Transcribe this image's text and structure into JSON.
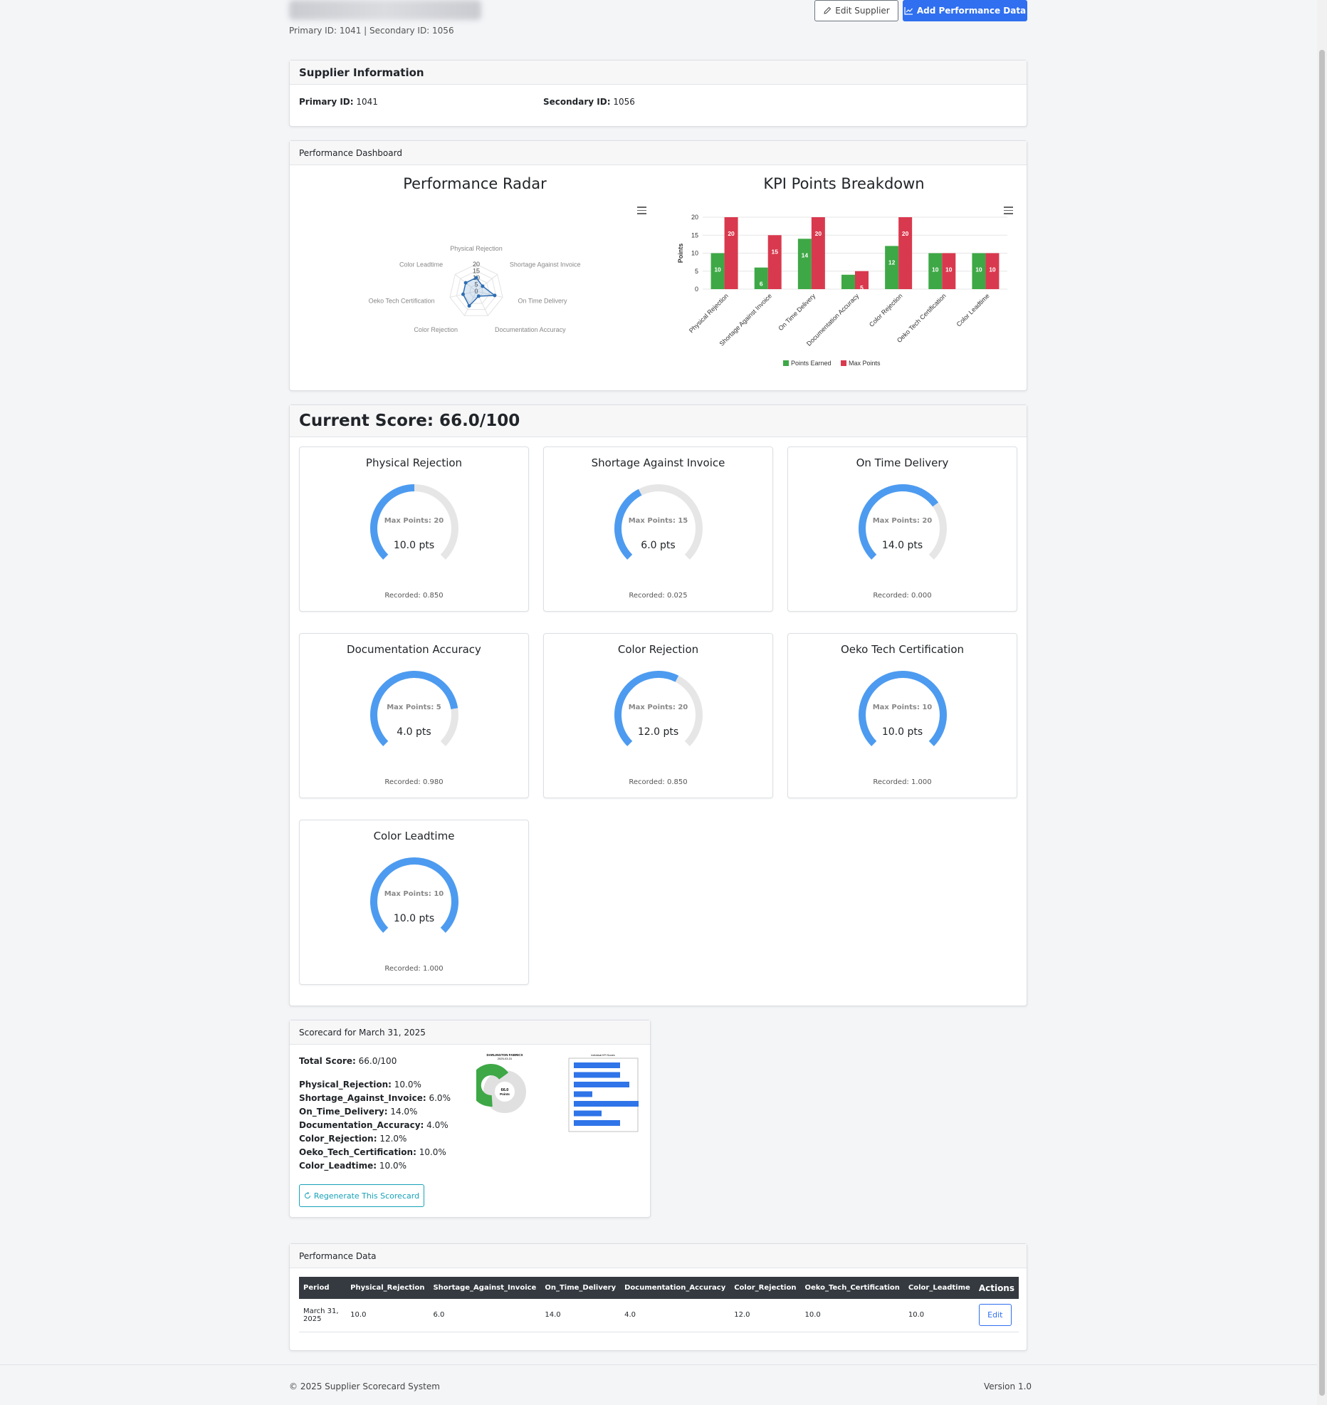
{
  "header": {
    "supplier_name": "DARLINGTON FABRICS",
    "ids_line": "Primary ID: 1041 | Secondary ID: 1056",
    "edit_label": "Edit Supplier",
    "add_label": "Add Performance Data",
    "edit_icon": "pencil-icon",
    "add_icon": "line-chart-icon"
  },
  "supplier_info": {
    "title": "Supplier Information",
    "primary_label": "Primary ID:",
    "primary_value": "1041",
    "secondary_label": "Secondary ID:",
    "secondary_value": "1056"
  },
  "dashboard": {
    "title": "Performance Dashboard",
    "radar_title": "Performance Radar",
    "bar_title": "KPI Points Breakdown"
  },
  "chart_data": [
    {
      "type": "radar",
      "title": "Performance Radar",
      "categories": [
        "Physical Rejection",
        "Shortage Against Invoice",
        "On Time Delivery",
        "Documentation Accuracy",
        "Color Rejection",
        "Oeko Tech Certification",
        "Color Leadtime"
      ],
      "values": [
        10,
        6,
        14,
        4,
        12,
        10,
        10
      ],
      "ticks": [
        0,
        5,
        10,
        15,
        20
      ],
      "ylim": [
        0,
        20
      ]
    },
    {
      "type": "bar",
      "title": "KPI Points Breakdown",
      "ylabel": "Points",
      "ylim": [
        0,
        20
      ],
      "yticks": [
        0,
        5,
        10,
        15,
        20
      ],
      "categories": [
        "Physical Rejection",
        "Shortage Against Invoice",
        "On Time Delivery",
        "Documentation Accuracy",
        "Color Rejection",
        "Oeko Tech Certification",
        "Color Leadtime"
      ],
      "series": [
        {
          "name": "Points Earned",
          "color": "#3ea846",
          "values": [
            10,
            6,
            14,
            4,
            12,
            10,
            10
          ]
        },
        {
          "name": "Max Points",
          "color": "#d9394e",
          "values": [
            20,
            15,
            20,
            5,
            20,
            10,
            10
          ]
        }
      ],
      "legend": "bottom"
    }
  ],
  "score": {
    "title": "Current Score: 66.0/100",
    "kpis": [
      {
        "name": "Physical Rejection",
        "max_label": "Max Points: 20",
        "max": 20,
        "earned": 10,
        "pts_label": "10.0 pts",
        "recorded": "Recorded: 0.850"
      },
      {
        "name": "Shortage Against Invoice",
        "max_label": "Max Points: 15",
        "max": 15,
        "earned": 6,
        "pts_label": "6.0 pts",
        "recorded": "Recorded: 0.025"
      },
      {
        "name": "On Time Delivery",
        "max_label": "Max Points: 20",
        "max": 20,
        "earned": 14,
        "pts_label": "14.0 pts",
        "recorded": "Recorded: 0.000"
      },
      {
        "name": "Documentation Accuracy",
        "max_label": "Max Points: 5",
        "max": 5,
        "earned": 4,
        "pts_label": "4.0 pts",
        "recorded": "Recorded: 0.980"
      },
      {
        "name": "Color Rejection",
        "max_label": "Max Points: 20",
        "max": 20,
        "earned": 12,
        "pts_label": "12.0 pts",
        "recorded": "Recorded: 0.850"
      },
      {
        "name": "Oeko Tech Certification",
        "max_label": "Max Points: 10",
        "max": 10,
        "earned": 10,
        "pts_label": "10.0 pts",
        "recorded": "Recorded: 1.000"
      },
      {
        "name": "Color Leadtime",
        "max_label": "Max Points: 10",
        "max": 10,
        "earned": 10,
        "pts_label": "10.0 pts",
        "recorded": "Recorded: 1.000"
      }
    ],
    "gauge_color": "#4d9bf0",
    "track_color": "#e6e6e6"
  },
  "scorecard": {
    "title": "Scorecard for March 31, 2025",
    "total_label": "Total Score:",
    "total_value": "66.0/100",
    "lines": [
      {
        "label": "Physical_Rejection:",
        "value": "10.0%"
      },
      {
        "label": "Shortage_Against_Invoice:",
        "value": "6.0%"
      },
      {
        "label": "On_Time_Delivery:",
        "value": "14.0%"
      },
      {
        "label": "Documentation_Accuracy:",
        "value": "4.0%"
      },
      {
        "label": "Color_Rejection:",
        "value": "12.0%"
      },
      {
        "label": "Oeko_Tech_Certification:",
        "value": "10.0%"
      },
      {
        "label": "Color_Leadtime:",
        "value": "10.0%"
      }
    ],
    "regen_label": "Regenerate This Scorecard",
    "thumb_title": "DARLINGTON FABRICS",
    "thumb_date": "2025-03-31",
    "thumb_donut_value": "66.0",
    "thumb_donut_unit": "Points",
    "thumb_bar_title": "Individual KPI Scores"
  },
  "performance_data": {
    "title": "Performance Data",
    "columns": [
      "Period",
      "Physical_Rejection",
      "Shortage_Against_Invoice",
      "On_Time_Delivery",
      "Documentation_Accuracy",
      "Color_Rejection",
      "Oeko_Tech_Certification",
      "Color_Leadtime",
      "Actions"
    ],
    "rows": [
      [
        "March 31, 2025",
        "10.0",
        "6.0",
        "14.0",
        "4.0",
        "12.0",
        "10.0",
        "10.0"
      ]
    ],
    "edit_label": "Edit"
  },
  "footer": {
    "copyright": "© 2025 Supplier Scorecard System",
    "version": "Version 1.0"
  }
}
